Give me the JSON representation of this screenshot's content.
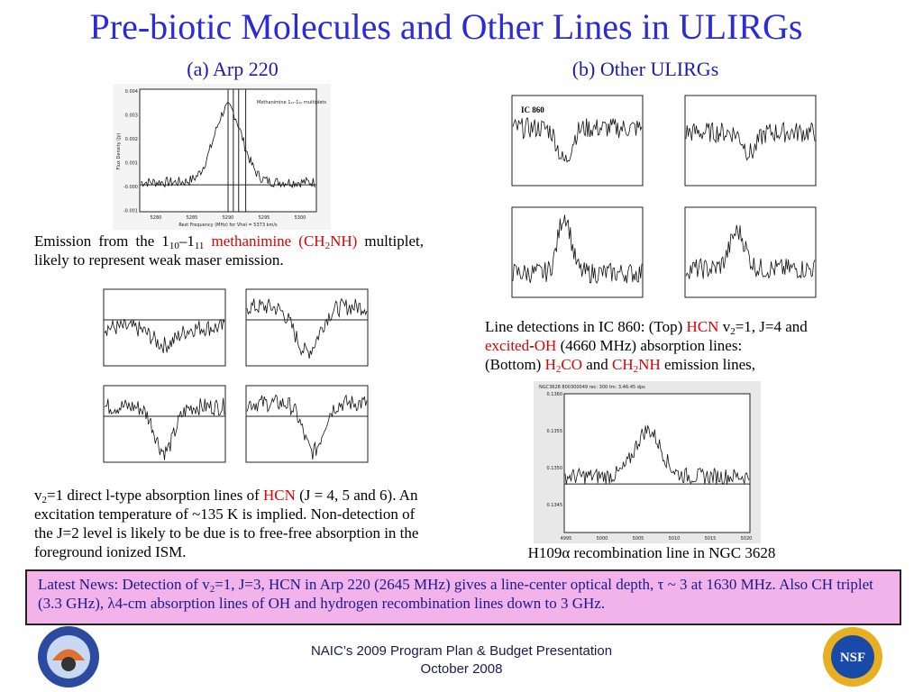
{
  "title": "Pre-biotic Molecules and Other Lines in ULIRGs",
  "sections": {
    "a": "(a) Arp 220",
    "b": "(b) Other ULIRGs"
  },
  "arp220_plot": {
    "label": "Methanimine 1₁₁-1₁₀ multiplets",
    "ylabel": "Flux Density (Jy)",
    "xlabel": "Rest Frequency (MHz) for Vhel = 5373 km/s",
    "yticks": [
      "0.004",
      "0.003",
      "0.002",
      "0.001",
      "-0.000",
      "-0.001"
    ],
    "xticks": [
      "5280",
      "5285",
      "5290",
      "5295",
      "5300"
    ]
  },
  "emission_caption": [
    {
      "text": "Emission from the 1"
    },
    {
      "text": "10",
      "sub": true
    },
    {
      "text": "–1"
    },
    {
      "text": "11",
      "sub": true
    },
    {
      "text": " methanimine (CH",
      "color": "#e00000"
    },
    {
      "text": "2",
      "sub": true,
      "color": "#e00000"
    },
    {
      "text": "NH)",
      "color": "#e00000"
    },
    {
      "text": " multiplet, likely to represent weak maser emission."
    }
  ],
  "hcn_caption": [
    {
      "text": "v"
    },
    {
      "text": "2",
      "sub": true
    },
    {
      "text": "=1 direct l-type absorption lines of "
    },
    {
      "text": "HCN",
      "color": "#e00000"
    },
    {
      "text": " (J = 4, 5 and 6). An excitation temperature of  ~135 K is implied. Non-detection of the J=2 level is likely to be due  is to free-free absorption in the foreground ionized ISM."
    }
  ],
  "ic860_label": "IC 860",
  "detections_caption": [
    [
      {
        "text": "Line detections in IC 860: (Top) "
      },
      {
        "text": "HCN",
        "color": "#e00000"
      },
      {
        "text": " v"
      },
      {
        "text": "2",
        "sub": true
      },
      {
        "text": "=1, J=4 and"
      }
    ],
    [
      {
        "text": "excited",
        "color": "#e00000"
      },
      {
        "text": "-"
      },
      {
        "text": "OH",
        "color": "#e00000"
      },
      {
        "text": " (4660 MHz) absorption lines:"
      }
    ],
    [
      {
        "text": "(Bottom) "
      },
      {
        "text": "H",
        "color": "#e00000"
      },
      {
        "text": "2",
        "sub": true,
        "color": "#e00000"
      },
      {
        "text": "CO",
        "color": "#e00000"
      },
      {
        "text": " and "
      },
      {
        "text": "CH",
        "color": "#e00000"
      },
      {
        "text": "2",
        "sub": true,
        "color": "#e00000"
      },
      {
        "text": "NH",
        "color": "#e00000"
      },
      {
        "text": " emission lines,"
      }
    ]
  ],
  "ngc_plot": {
    "header": "NGC3628 800300049 rec: 300 tm: 3:46:45 dps",
    "yticks": [
      "0.1360",
      "0.1355",
      "0.1350",
      "0.1345"
    ],
    "xticks": [
      "4995",
      "5000",
      "5005",
      "5010",
      "5015",
      "5020"
    ]
  },
  "h109_caption": "H109α recombination line in NGC 3628",
  "news": [
    {
      "text": "Latest News:  Detection of v"
    },
    {
      "text": "2",
      "sub": true
    },
    {
      "text": "=1, J=3, HCN in Arp 220 (2645 MHz) gives a line-center optical depth, τ ~ 3 at 1630 MHz.  Also CH triplet (3.3 GHz),  λ4-cm absorption lines of OH and hydrogen recombination lines down to 3 GHz."
    }
  ],
  "footer": {
    "line1": "NAIC’s 2009 Program Plan & Budget Presentation",
    "line2": "October 2008"
  },
  "nsf_logo": "NSF"
}
